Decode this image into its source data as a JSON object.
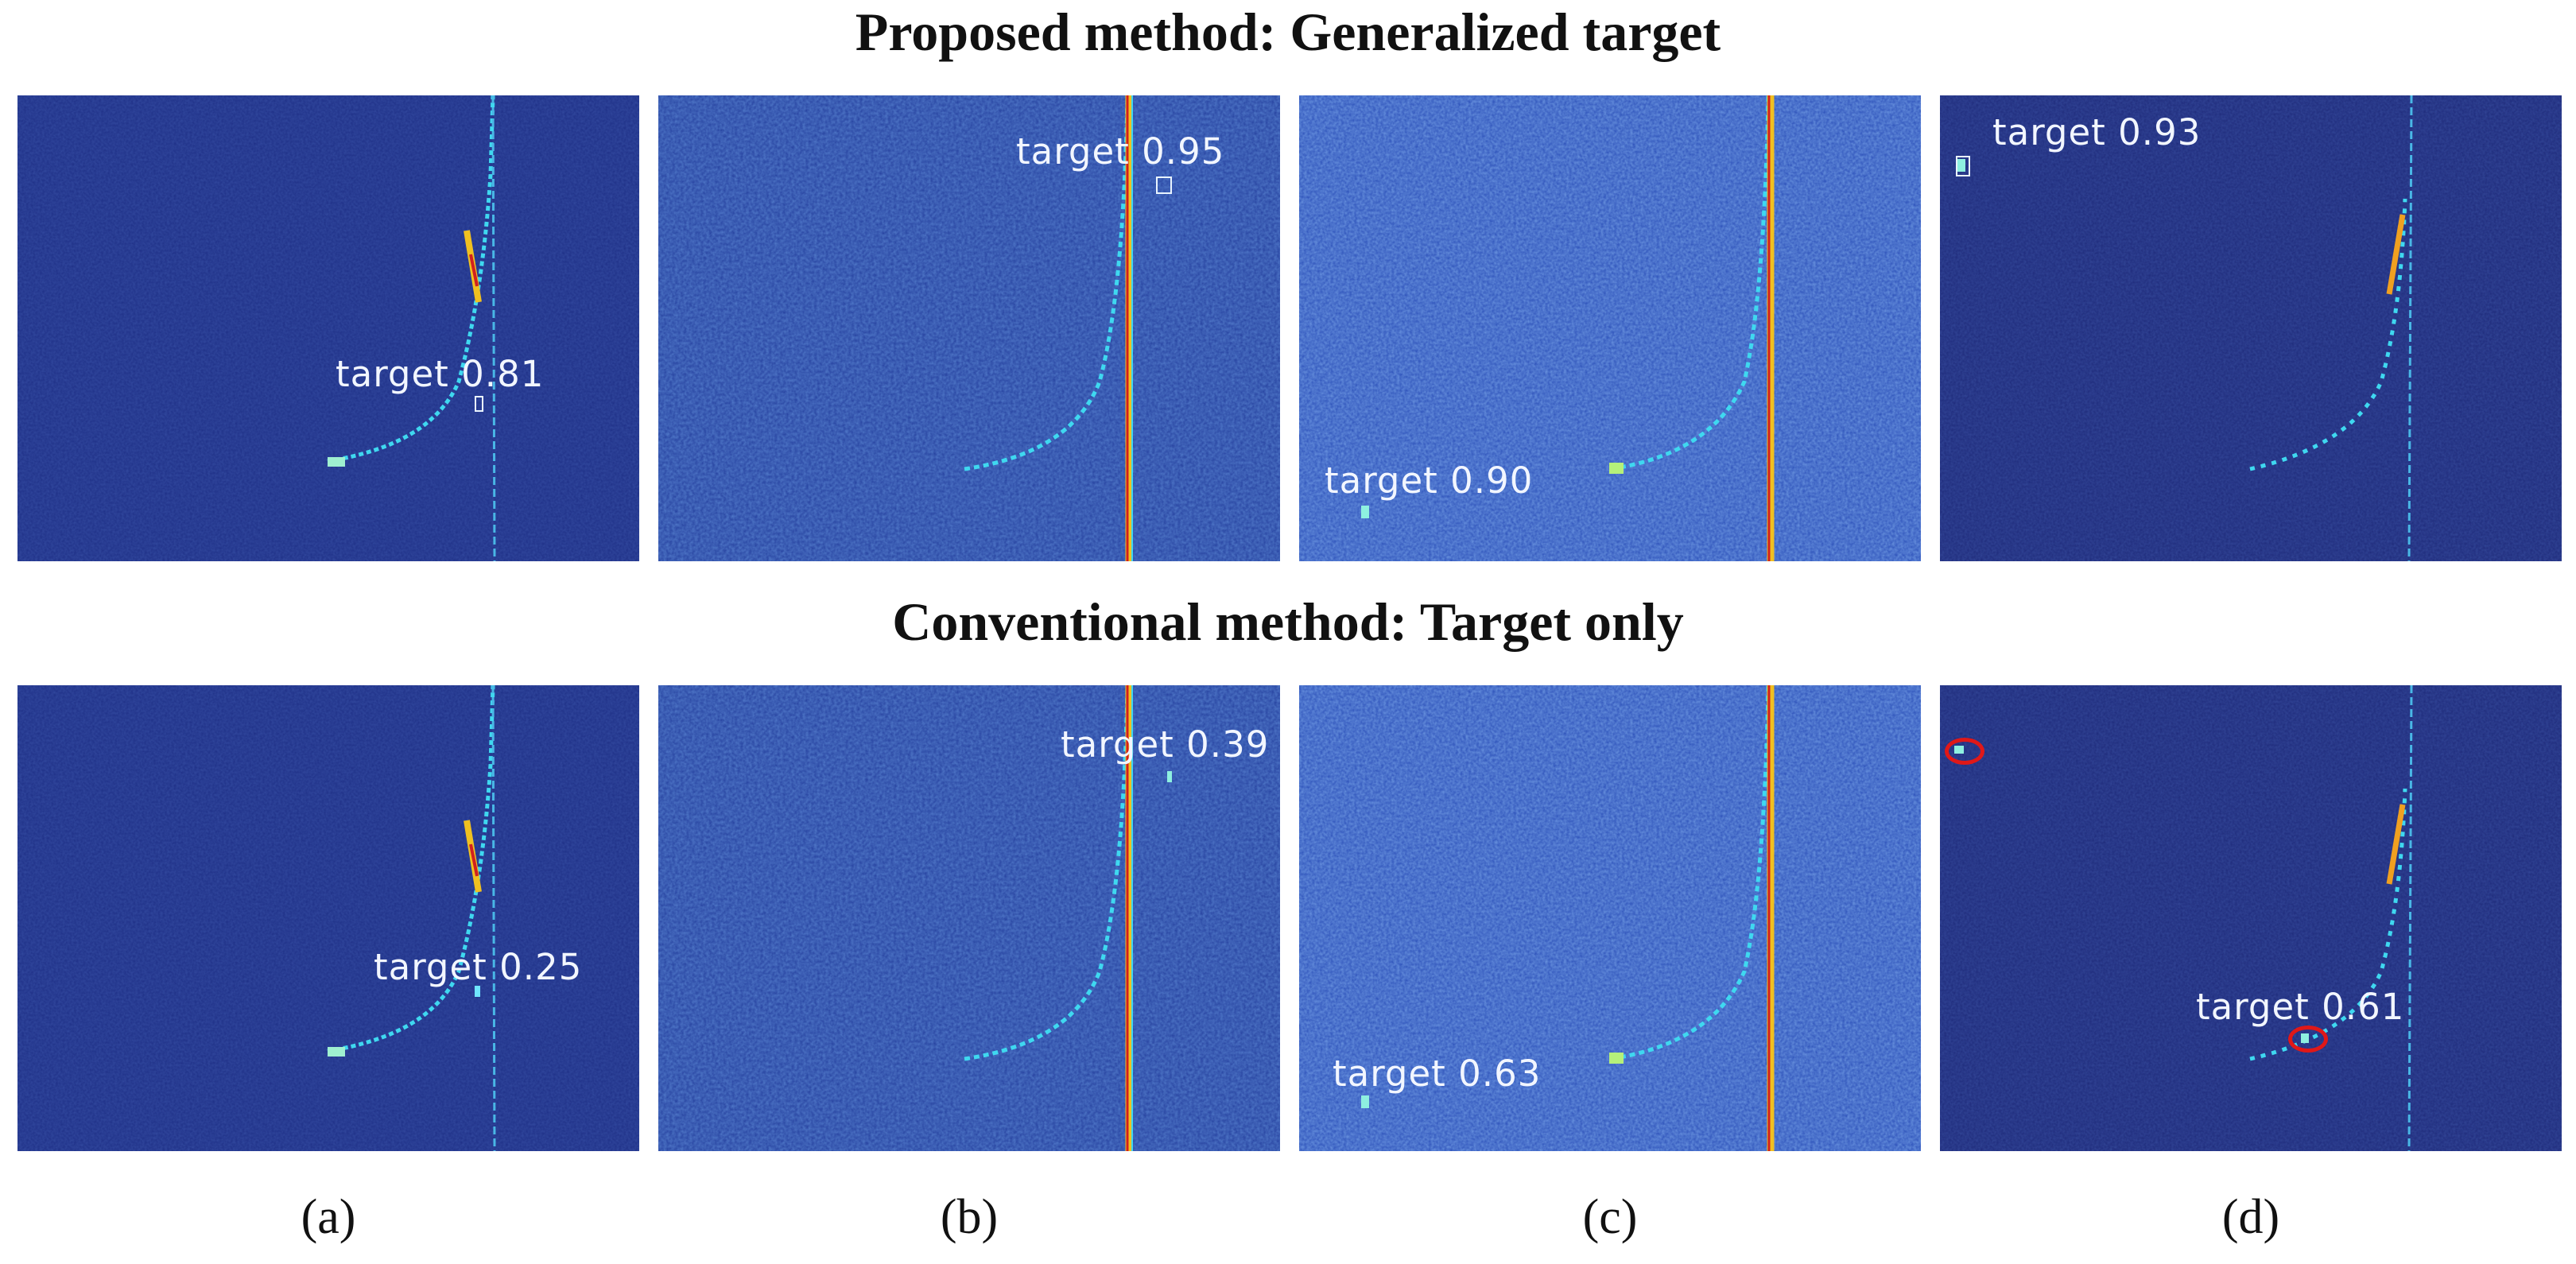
{
  "figure": {
    "title_proposed": "Proposed method: Generalized target",
    "title_conventional": "Conventional method: Target only",
    "captions": [
      "(a)",
      "(b)",
      "(c)",
      "(d)"
    ]
  },
  "rows": {
    "proposed": {
      "a": {
        "detection": "target 0.81"
      },
      "b": {
        "detection": "target 0.95"
      },
      "c": {
        "detection": "target 0.90"
      },
      "d": {
        "detection": "target 0.93"
      }
    },
    "conventional": {
      "a": {
        "detection": "target 0.25"
      },
      "b": {
        "detection": "target 0.39"
      },
      "c": {
        "detection": "target 0.63"
      },
      "d": {
        "detection": "target 0.61"
      }
    }
  },
  "colors": {
    "background_deep": "#1e2f86",
    "background_noisy": "#2b4fb8",
    "signal_cyan": "#3fd8f0",
    "signal_hot": "#f0c020",
    "signal_red": "#d02020",
    "miss_marker": "#e01818"
  }
}
